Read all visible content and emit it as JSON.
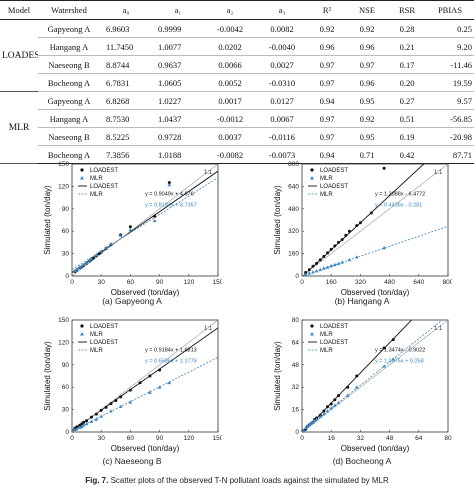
{
  "table": {
    "headers": [
      "Model",
      "Watershed",
      "a₀",
      "a₁",
      "a₂",
      "a₃",
      "R²",
      "NSE",
      "RSR",
      "PBIAS"
    ],
    "groups": [
      {
        "model": "LOADEST",
        "rows": [
          [
            "Gapyeong A",
            "6.9603",
            "0.9999",
            "-0.0042",
            "0.0082",
            "0.92",
            "0.92",
            "0.28",
            "0.25"
          ],
          [
            "Hangang A",
            "11.7450",
            "1.0077",
            "0.0202",
            "-0.0040",
            "0.96",
            "0.96",
            "0.21",
            "9.20"
          ],
          [
            "Naeseong B",
            "8.8744",
            "0.9637",
            "0.0066",
            "0.0027",
            "0.97",
            "0.97",
            "0.17",
            "-11.46"
          ],
          [
            "Bocheong A",
            "6.7831",
            "1.0605",
            "0.0052",
            "-0.0310",
            "0.97",
            "0.96",
            "0.20",
            "19.59"
          ]
        ]
      },
      {
        "model": "MLR",
        "rows": [
          [
            "Gapyeong A",
            "6.8268",
            "1.0227",
            "0.0017",
            "0.0127",
            "0.94",
            "0.95",
            "0.27",
            "9.57"
          ],
          [
            "Hangang A",
            "8.7530",
            "1.0437",
            "-0.0012",
            "0.0067",
            "0.97",
            "0.92",
            "0.51",
            "-56.85"
          ],
          [
            "Naeseong B",
            "8.5225",
            "0.9728",
            "0.0037",
            "-0.0116",
            "0.97",
            "0.95",
            "0.19",
            "-20.98"
          ],
          [
            "Bocheong A",
            "7.3856",
            "1.0188",
            "-0.0082",
            "-0.0073",
            "0.94",
            "0.71",
            "0.42",
            "87.71"
          ]
        ]
      }
    ]
  },
  "charts": [
    {
      "key": "a",
      "caption": "(a) Gapyeong A",
      "xlabel": "Observed (ton/day)",
      "ylabel": "Simulated (ton/day)",
      "xticks": [
        "0",
        "30",
        "60",
        "90",
        "120",
        "150"
      ],
      "yticks": [
        "0",
        "30",
        "60",
        "90",
        "120",
        "150"
      ],
      "legend": [
        "LOADEST",
        "MLR",
        "LOADEST",
        "MLR"
      ],
      "one_to_one": "1:1",
      "eq1": "y = 0.9049x + 4.676",
      "eq2": "y = 0.8194x + 8.7357"
    },
    {
      "key": "b",
      "caption": "(b) Hangang A",
      "xlabel": "Observed (ton/day)",
      "ylabel": "Simulated (ton/day)",
      "xticks": [
        "0",
        "160",
        "320",
        "480",
        "640",
        "800"
      ],
      "yticks": [
        "0",
        "160",
        "320",
        "480",
        "640",
        "800"
      ],
      "legend": [
        "LOADEST",
        "MLR",
        "LOADEST",
        "MLR"
      ],
      "one_to_one": "1:1",
      "eq1": "y = 1.2088x - 6.4772",
      "eq2": "y = 0.4438x - 0.281"
    },
    {
      "key": "c",
      "caption": "(c) Naeseong B",
      "xlabel": "Observed (ton/day)",
      "ylabel": "Simulated (ton/day)",
      "xticks": [
        "0",
        "30",
        "60",
        "90",
        "120",
        "150"
      ],
      "yticks": [
        "0",
        "30",
        "60",
        "90",
        "120",
        "150"
      ],
      "legend": [
        "LOADEST",
        "MLR",
        "LOADEST",
        "MLR"
      ],
      "one_to_one": "1:1",
      "eq1": "y = 0.9184x + 1.6813",
      "eq2": "y = 0.6586x + 1.1779"
    },
    {
      "key": "d",
      "caption": "(d) Bocheong A",
      "xlabel": "Observed (ton/day)",
      "ylabel": "Simulated (ton/day)",
      "xticks": [
        "0",
        "16",
        "32",
        "48",
        "64",
        "80"
      ],
      "yticks": [
        "0",
        "16",
        "32",
        "48",
        "64",
        "80"
      ],
      "legend": [
        "LOADEST",
        "MLR",
        "LOADEST",
        "MLR"
      ],
      "one_to_one": "1:1",
      "eq1": "y = 1.3474x - 0.9022",
      "eq2": "y = 1.0375x + 0.258"
    }
  ],
  "figure": {
    "label": "Fig. 7.",
    "caption": "Scatter plots of the observed T-N pollutant loads against the simulated by MLR"
  },
  "chart_data": [
    {
      "type": "scatter",
      "title": "(a) Gapyeong A",
      "xlabel": "Observed (ton/day)",
      "ylabel": "Simulated (ton/day)",
      "xlim": [
        0,
        150
      ],
      "ylim": [
        0,
        150
      ],
      "legend_position": "top-left",
      "series": [
        {
          "name": "LOADEST",
          "color": "#111111",
          "x": [
            3,
            5,
            8,
            10,
            12,
            15,
            18,
            20,
            22,
            25,
            28,
            30,
            35,
            40,
            50,
            60,
            85,
            100
          ],
          "y": [
            6,
            8,
            11,
            12,
            14,
            17,
            20,
            22,
            24,
            27,
            30,
            32,
            37,
            42,
            55,
            66,
            80,
            125
          ]
        },
        {
          "name": "MLR",
          "color": "#3a86c8",
          "x": [
            3,
            5,
            8,
            10,
            12,
            15,
            18,
            20,
            25,
            30,
            35,
            40,
            50,
            60,
            85,
            100
          ],
          "y": [
            7,
            9,
            12,
            13,
            15,
            18,
            21,
            23,
            28,
            33,
            38,
            43,
            54,
            62,
            74,
            122
          ]
        }
      ],
      "trendlines": [
        {
          "name": "LOADEST",
          "slope": 0.9049,
          "intercept": 4.676,
          "style": "solid"
        },
        {
          "name": "MLR",
          "slope": 0.8194,
          "intercept": 8.7357,
          "style": "dashed"
        },
        {
          "name": "1:1",
          "slope": 1,
          "intercept": 0,
          "style": "solid"
        }
      ]
    },
    {
      "type": "scatter",
      "title": "(b) Hangang A",
      "xlabel": "Observed (ton/day)",
      "ylabel": "Simulated (ton/day)",
      "xlim": [
        0,
        800
      ],
      "ylim": [
        0,
        800
      ],
      "legend_position": "top-left",
      "series": [
        {
          "name": "LOADEST",
          "color": "#111111",
          "x": [
            20,
            40,
            60,
            80,
            100,
            120,
            140,
            160,
            180,
            200,
            220,
            240,
            260,
            300,
            320,
            380,
            450
          ],
          "y": [
            25,
            45,
            70,
            90,
            115,
            140,
            165,
            190,
            215,
            240,
            260,
            290,
            320,
            360,
            380,
            450,
            770
          ]
        },
        {
          "name": "MLR",
          "color": "#3a86c8",
          "x": [
            20,
            40,
            60,
            80,
            100,
            120,
            140,
            160,
            180,
            200,
            220,
            260,
            300,
            450
          ],
          "y": [
            10,
            20,
            28,
            36,
            45,
            55,
            62,
            72,
            80,
            88,
            98,
            115,
            135,
            200
          ]
        }
      ],
      "trendlines": [
        {
          "name": "LOADEST",
          "slope": 1.2088,
          "intercept": -6.4772,
          "style": "solid"
        },
        {
          "name": "MLR",
          "slope": 0.4438,
          "intercept": -0.281,
          "style": "dashed"
        },
        {
          "name": "1:1",
          "slope": 1,
          "intercept": 0,
          "style": "solid"
        }
      ]
    },
    {
      "type": "scatter",
      "title": "(c) Naeseong B",
      "xlabel": "Observed (ton/day)",
      "ylabel": "Simulated (ton/day)",
      "xlim": [
        0,
        150
      ],
      "ylim": [
        0,
        150
      ],
      "legend_position": "top-left",
      "series": [
        {
          "name": "LOADEST",
          "color": "#111111",
          "x": [
            3,
            5,
            8,
            10,
            12,
            15,
            20,
            25,
            30,
            35,
            40,
            45,
            50,
            60,
            70,
            80,
            90
          ],
          "y": [
            5,
            7,
            9,
            11,
            13,
            15,
            20,
            24,
            29,
            33,
            38,
            42,
            47,
            56,
            66,
            75,
            83
          ]
        },
        {
          "name": "MLR",
          "color": "#3a86c8",
          "x": [
            3,
            5,
            8,
            10,
            12,
            15,
            20,
            25,
            30,
            40,
            50,
            60,
            80,
            90,
            100
          ],
          "y": [
            3,
            4,
            6,
            7,
            9,
            11,
            14,
            17,
            21,
            28,
            34,
            40,
            53,
            60,
            66
          ]
        }
      ],
      "trendlines": [
        {
          "name": "LOADEST",
          "slope": 0.9184,
          "intercept": 1.6813,
          "style": "solid"
        },
        {
          "name": "MLR",
          "slope": 0.6586,
          "intercept": 1.1779,
          "style": "dashed"
        },
        {
          "name": "1:1",
          "slope": 1,
          "intercept": 0,
          "style": "solid"
        }
      ]
    },
    {
      "type": "scatter",
      "title": "(d) Bocheong A",
      "xlabel": "Observed (ton/day)",
      "ylabel": "Simulated (ton/day)",
      "xlim": [
        0,
        80
      ],
      "ylim": [
        0,
        80
      ],
      "legend_position": "top-left",
      "series": [
        {
          "name": "LOADEST",
          "color": "#111111",
          "x": [
            1,
            2,
            3,
            4,
            5,
            6,
            7,
            8,
            10,
            12,
            14,
            16,
            18,
            20,
            25,
            30,
            45,
            50
          ],
          "y": [
            1,
            2,
            4,
            5,
            6,
            7,
            9,
            10,
            12,
            15,
            18,
            20,
            23,
            26,
            32,
            40,
            60,
            66
          ]
        },
        {
          "name": "MLR",
          "color": "#3a86c8",
          "x": [
            1,
            2,
            3,
            4,
            5,
            6,
            7,
            8,
            10,
            12,
            14,
            16,
            18,
            20,
            25,
            30,
            45,
            50
          ],
          "y": [
            1,
            3,
            4,
            5,
            6,
            7,
            8,
            9,
            11,
            13,
            15,
            17,
            19,
            21,
            26,
            32,
            47,
            52
          ]
        }
      ],
      "trendlines": [
        {
          "name": "LOADEST",
          "slope": 1.3474,
          "intercept": -0.9022,
          "style": "solid"
        },
        {
          "name": "MLR",
          "slope": 1.0375,
          "intercept": 0.258,
          "style": "dashed"
        },
        {
          "name": "1:1",
          "slope": 1,
          "intercept": 0,
          "style": "solid"
        }
      ]
    }
  ]
}
